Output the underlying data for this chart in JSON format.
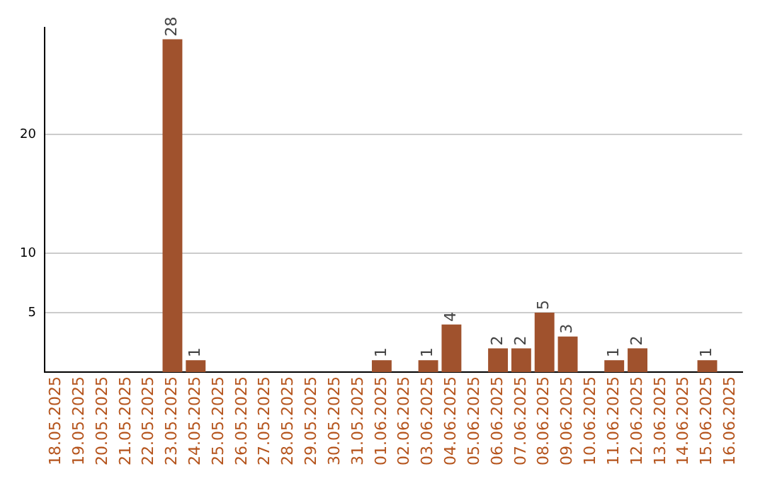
{
  "chart_data": {
    "type": "bar",
    "categories": [
      "18.05.2025",
      "19.05.2025",
      "20.05.2025",
      "21.05.2025",
      "22.05.2025",
      "23.05.2025",
      "24.05.2025",
      "25.05.2025",
      "26.05.2025",
      "27.05.2025",
      "28.05.2025",
      "29.05.2025",
      "30.05.2025",
      "31.05.2025",
      "01.06.2025",
      "02.06.2025",
      "03.06.2025",
      "04.06.2025",
      "05.06.2025",
      "06.06.2025",
      "07.06.2025",
      "08.06.2025",
      "09.06.2025",
      "10.06.2025",
      "11.06.2025",
      "12.06.2025",
      "13.06.2025",
      "14.06.2025",
      "15.06.2025",
      "16.06.2025"
    ],
    "values": [
      0,
      0,
      0,
      0,
      0,
      28,
      1,
      0,
      0,
      0,
      0,
      0,
      0,
      0,
      1,
      0,
      1,
      4,
      0,
      2,
      2,
      5,
      3,
      0,
      1,
      2,
      0,
      0,
      1,
      0
    ],
    "color": "#a0522d",
    "value_labels": [
      null,
      null,
      null,
      null,
      null,
      "28",
      "1",
      null,
      null,
      null,
      null,
      null,
      null,
      null,
      "1",
      null,
      "1",
      "4",
      null,
      "2",
      "2",
      "5",
      "3",
      null,
      "1",
      "2",
      null,
      null,
      "1",
      null
    ],
    "ylim": [
      0,
      29
    ],
    "yticks": [
      5,
      10,
      20
    ],
    "grid": "y"
  }
}
